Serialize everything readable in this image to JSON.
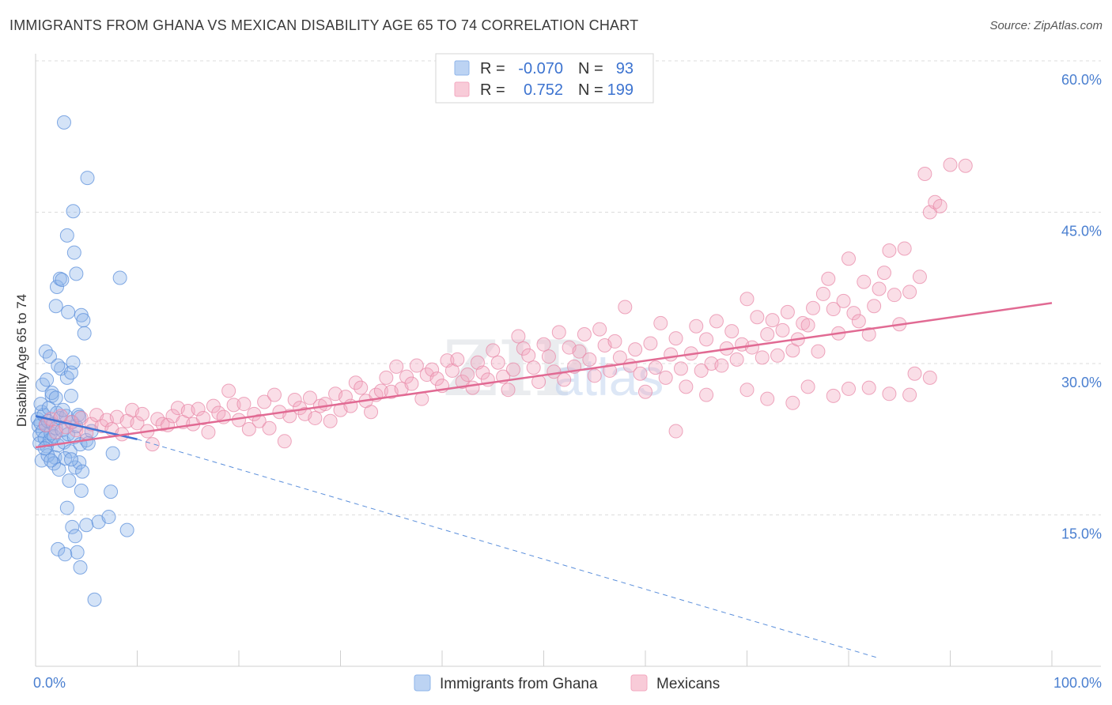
{
  "header": {
    "title": "IMMIGRANTS FROM GHANA VS MEXICAN DISABILITY AGE 65 TO 74 CORRELATION CHART",
    "source": "Source: ZipAtlas.com"
  },
  "watermark": {
    "zip": "ZIP",
    "atlas": "atlas"
  },
  "chart_data": {
    "type": "scatter",
    "ylabel": "Disability Age 65 to 74",
    "xlim": [
      0,
      100
    ],
    "ylim": [
      0,
      60
    ],
    "x_tick_labels": [
      "0.0%",
      "100.0%"
    ],
    "y_ticks": [
      15,
      30,
      45,
      60
    ],
    "y_tick_labels": [
      "15.0%",
      "30.0%",
      "45.0%",
      "60.0%"
    ],
    "grid": "horizontal dashed",
    "legend_position": "top-center",
    "legend_stats": [
      {
        "r_label": "R =",
        "r": "-0.070",
        "n_label": "N =",
        "n": "93",
        "color": "#8fb5ea"
      },
      {
        "r_label": "R =",
        "r": "0.752",
        "n_label": "N =",
        "n": "199",
        "color": "#f3a9c0"
      }
    ],
    "series": [
      {
        "name": "Immigrants from Ghana",
        "color": "#8fb5ea",
        "stroke": "#5b8fdb",
        "trend": {
          "x0": 0,
          "y0": 24.8,
          "x1": 10,
          "y1": 22.5,
          "solid_until": 10,
          "dashed_to": 83,
          "dashed_y": 0.8
        },
        "points": [
          [
            0.2,
            24.5
          ],
          [
            0.3,
            23.8
          ],
          [
            0.4,
            22.9
          ],
          [
            0.5,
            24.1
          ],
          [
            0.6,
            25.2
          ],
          [
            0.7,
            23.3
          ],
          [
            0.4,
            22.1
          ],
          [
            0.8,
            24.9
          ],
          [
            0.9,
            22.6
          ],
          [
            1.0,
            23.9
          ],
          [
            1.1,
            21.8
          ],
          [
            1.2,
            24.3
          ],
          [
            0.5,
            26.0
          ],
          [
            0.7,
            27.9
          ],
          [
            1.3,
            25.6
          ],
          [
            1.4,
            22.4
          ],
          [
            1.5,
            23.1
          ],
          [
            1.6,
            26.8
          ],
          [
            1.7,
            24.0
          ],
          [
            1.8,
            22.8
          ],
          [
            1.9,
            20.7
          ],
          [
            2.0,
            23.6
          ],
          [
            2.1,
            25.1
          ],
          [
            2.2,
            21.9
          ],
          [
            2.4,
            24.6
          ],
          [
            2.6,
            23.4
          ],
          [
            2.8,
            22.2
          ],
          [
            3.0,
            24.8
          ],
          [
            3.2,
            23.0
          ],
          [
            3.4,
            21.3
          ],
          [
            3.6,
            24.2
          ],
          [
            3.8,
            22.7
          ],
          [
            4.0,
            23.8
          ],
          [
            4.2,
            24.9
          ],
          [
            4.4,
            22.0
          ],
          [
            0.6,
            20.4
          ],
          [
            1.2,
            20.9
          ],
          [
            1.8,
            20.1
          ],
          [
            2.3,
            19.5
          ],
          [
            2.9,
            20.6
          ],
          [
            3.3,
            18.4
          ],
          [
            3.9,
            19.7
          ],
          [
            4.3,
            20.2
          ],
          [
            1.0,
            31.2
          ],
          [
            1.4,
            30.7
          ],
          [
            2.5,
            29.5
          ],
          [
            3.1,
            28.6
          ],
          [
            3.5,
            29.1
          ],
          [
            1.6,
            27.1
          ],
          [
            2.0,
            26.6
          ],
          [
            2.7,
            25.4
          ],
          [
            3.5,
            26.8
          ],
          [
            4.3,
            24.7
          ],
          [
            5.0,
            22.4
          ],
          [
            5.5,
            23.3
          ],
          [
            1.1,
            28.4
          ],
          [
            2.2,
            29.8
          ],
          [
            3.7,
            30.1
          ],
          [
            4.5,
            34.8
          ],
          [
            4.7,
            34.3
          ],
          [
            2.0,
            35.7
          ],
          [
            3.2,
            35.1
          ],
          [
            4.8,
            33.0
          ],
          [
            2.1,
            37.6
          ],
          [
            2.4,
            38.4
          ],
          [
            2.6,
            38.3
          ],
          [
            4.0,
            38.9
          ],
          [
            3.1,
            42.7
          ],
          [
            3.8,
            41.0
          ],
          [
            3.7,
            45.1
          ],
          [
            5.1,
            48.4
          ],
          [
            2.8,
            53.9
          ],
          [
            8.3,
            38.5
          ],
          [
            3.1,
            15.7
          ],
          [
            3.6,
            13.8
          ],
          [
            3.9,
            12.9
          ],
          [
            4.1,
            11.3
          ],
          [
            2.2,
            11.6
          ],
          [
            2.9,
            11.1
          ],
          [
            4.4,
            9.8
          ],
          [
            5.0,
            14.0
          ],
          [
            6.2,
            14.3
          ],
          [
            7.2,
            14.8
          ],
          [
            9.0,
            13.5
          ],
          [
            5.8,
            6.6
          ],
          [
            4.5,
            17.4
          ],
          [
            7.4,
            17.3
          ],
          [
            7.6,
            21.1
          ],
          [
            3.5,
            20.5
          ],
          [
            4.6,
            19.3
          ],
          [
            5.2,
            22.1
          ],
          [
            0.9,
            21.6
          ],
          [
            1.5,
            20.4
          ]
        ]
      },
      {
        "name": "Mexicans",
        "color": "#f3a9c0",
        "stroke": "#e88aa8",
        "trend": {
          "x0": 0,
          "y0": 21.7,
          "x1": 100,
          "y1": 36.0
        },
        "points": [
          [
            1.0,
            23.9
          ],
          [
            1.5,
            24.5
          ],
          [
            2.0,
            23.2
          ],
          [
            2.5,
            24.8
          ],
          [
            3.0,
            23.7
          ],
          [
            3.5,
            24.2
          ],
          [
            4.0,
            23.4
          ],
          [
            4.5,
            24.6
          ],
          [
            5.0,
            23.1
          ],
          [
            5.5,
            24.0
          ],
          [
            6.0,
            24.9
          ],
          [
            6.5,
            23.8
          ],
          [
            7.0,
            24.4
          ],
          [
            7.5,
            23.5
          ],
          [
            8.0,
            24.7
          ],
          [
            8.5,
            23.0
          ],
          [
            9.0,
            24.3
          ],
          [
            9.5,
            25.4
          ],
          [
            10.0,
            24.1
          ],
          [
            10.5,
            25.0
          ],
          [
            11.0,
            23.3
          ],
          [
            11.5,
            22.0
          ],
          [
            12.0,
            24.5
          ],
          [
            12.5,
            24.0
          ],
          [
            13.0,
            23.9
          ],
          [
            13.5,
            24.8
          ],
          [
            14.0,
            25.6
          ],
          [
            14.5,
            24.2
          ],
          [
            15.0,
            25.3
          ],
          [
            15.5,
            24.0
          ],
          [
            16.0,
            25.5
          ],
          [
            16.5,
            24.6
          ],
          [
            17.0,
            23.2
          ],
          [
            17.5,
            25.8
          ],
          [
            18.0,
            25.1
          ],
          [
            18.5,
            24.7
          ],
          [
            19.0,
            27.3
          ],
          [
            19.5,
            25.9
          ],
          [
            20.0,
            24.4
          ],
          [
            20.5,
            26.0
          ],
          [
            21.0,
            23.5
          ],
          [
            21.5,
            25.0
          ],
          [
            22.0,
            24.3
          ],
          [
            22.5,
            26.2
          ],
          [
            23.0,
            23.6
          ],
          [
            23.5,
            26.9
          ],
          [
            24.0,
            25.2
          ],
          [
            24.5,
            22.3
          ],
          [
            25.0,
            24.8
          ],
          [
            25.5,
            26.4
          ],
          [
            26.0,
            25.6
          ],
          [
            26.5,
            25.0
          ],
          [
            27.0,
            26.6
          ],
          [
            27.5,
            24.6
          ],
          [
            28.0,
            25.8
          ],
          [
            28.5,
            26.0
          ],
          [
            29.0,
            24.3
          ],
          [
            29.5,
            27.0
          ],
          [
            30.0,
            25.4
          ],
          [
            30.5,
            26.7
          ],
          [
            31.0,
            25.8
          ],
          [
            31.5,
            28.1
          ],
          [
            32.0,
            27.6
          ],
          [
            32.5,
            26.3
          ],
          [
            33.0,
            25.2
          ],
          [
            33.5,
            26.9
          ],
          [
            34.0,
            27.3
          ],
          [
            34.5,
            28.6
          ],
          [
            35.0,
            27.2
          ],
          [
            35.5,
            29.7
          ],
          [
            36.0,
            27.5
          ],
          [
            36.5,
            28.7
          ],
          [
            37.0,
            28.0
          ],
          [
            37.5,
            29.8
          ],
          [
            38.0,
            26.5
          ],
          [
            38.5,
            28.9
          ],
          [
            39.0,
            29.4
          ],
          [
            39.5,
            28.5
          ],
          [
            40.0,
            27.8
          ],
          [
            40.5,
            30.3
          ],
          [
            41.0,
            29.3
          ],
          [
            41.5,
            30.4
          ],
          [
            42.0,
            28.2
          ],
          [
            42.5,
            28.9
          ],
          [
            43.0,
            27.6
          ],
          [
            43.5,
            30.1
          ],
          [
            44.0,
            29.1
          ],
          [
            44.5,
            28.4
          ],
          [
            45.0,
            31.3
          ],
          [
            45.5,
            30.1
          ],
          [
            46.0,
            28.7
          ],
          [
            46.5,
            27.4
          ],
          [
            47.0,
            29.4
          ],
          [
            47.5,
            32.7
          ],
          [
            48.0,
            31.5
          ],
          [
            48.5,
            30.8
          ],
          [
            49.0,
            29.6
          ],
          [
            49.5,
            28.2
          ],
          [
            50.0,
            31.9
          ],
          [
            50.5,
            30.7
          ],
          [
            51.0,
            29.2
          ],
          [
            51.5,
            33.1
          ],
          [
            52.0,
            28.4
          ],
          [
            52.5,
            31.6
          ],
          [
            53.0,
            29.7
          ],
          [
            53.5,
            31.2
          ],
          [
            54.0,
            32.9
          ],
          [
            54.5,
            30.4
          ],
          [
            55.0,
            28.8
          ],
          [
            55.5,
            33.4
          ],
          [
            56.0,
            31.8
          ],
          [
            56.5,
            29.3
          ],
          [
            57.0,
            32.2
          ],
          [
            57.5,
            30.6
          ],
          [
            58.0,
            35.6
          ],
          [
            58.5,
            29.8
          ],
          [
            59.0,
            31.4
          ],
          [
            59.5,
            29.0
          ],
          [
            60.0,
            27.2
          ],
          [
            60.5,
            32.0
          ],
          [
            61.0,
            29.6
          ],
          [
            61.5,
            34.0
          ],
          [
            62.0,
            28.6
          ],
          [
            62.5,
            30.9
          ],
          [
            63.0,
            32.5
          ],
          [
            63.5,
            29.5
          ],
          [
            64.0,
            27.7
          ],
          [
            64.5,
            31.0
          ],
          [
            65.0,
            33.7
          ],
          [
            65.5,
            29.3
          ],
          [
            66.0,
            32.4
          ],
          [
            66.5,
            30.0
          ],
          [
            67.0,
            34.2
          ],
          [
            67.5,
            29.8
          ],
          [
            68.0,
            31.5
          ],
          [
            68.5,
            33.2
          ],
          [
            69.0,
            30.4
          ],
          [
            69.5,
            31.9
          ],
          [
            70.0,
            36.4
          ],
          [
            70.5,
            31.6
          ],
          [
            71.0,
            34.6
          ],
          [
            71.5,
            30.6
          ],
          [
            72.0,
            32.9
          ],
          [
            72.5,
            34.3
          ],
          [
            73.0,
            30.8
          ],
          [
            73.5,
            33.3
          ],
          [
            74.0,
            35.1
          ],
          [
            74.5,
            31.3
          ],
          [
            75.0,
            32.4
          ],
          [
            75.5,
            34.0
          ],
          [
            76.0,
            33.8
          ],
          [
            76.5,
            35.5
          ],
          [
            77.0,
            31.2
          ],
          [
            77.5,
            36.9
          ],
          [
            78.0,
            38.4
          ],
          [
            78.5,
            35.4
          ],
          [
            79.0,
            33.0
          ],
          [
            79.5,
            36.2
          ],
          [
            80.0,
            40.4
          ],
          [
            80.5,
            35.0
          ],
          [
            81.0,
            34.2
          ],
          [
            81.5,
            38.1
          ],
          [
            82.0,
            32.9
          ],
          [
            82.5,
            35.7
          ],
          [
            83.0,
            37.4
          ],
          [
            83.5,
            39.0
          ],
          [
            84.0,
            41.2
          ],
          [
            84.5,
            36.8
          ],
          [
            85.0,
            33.9
          ],
          [
            85.5,
            41.4
          ],
          [
            86.0,
            37.1
          ],
          [
            86.5,
            29.0
          ],
          [
            87.0,
            38.6
          ],
          [
            87.5,
            48.8
          ],
          [
            88.0,
            45.0
          ],
          [
            88.5,
            46.0
          ],
          [
            89.0,
            45.6
          ],
          [
            90.0,
            49.7
          ],
          [
            91.5,
            49.6
          ],
          [
            63.0,
            23.3
          ],
          [
            66.0,
            26.9
          ],
          [
            70.0,
            27.4
          ],
          [
            72.0,
            26.5
          ],
          [
            74.5,
            26.1
          ],
          [
            76.0,
            27.7
          ],
          [
            78.5,
            26.8
          ],
          [
            80.0,
            27.5
          ],
          [
            82.0,
            27.6
          ],
          [
            84.0,
            27.0
          ],
          [
            86.0,
            26.9
          ],
          [
            88.0,
            28.6
          ]
        ]
      }
    ]
  },
  "legend_bottom": [
    {
      "label": "Immigrants from Ghana",
      "color": "#bcd3f3",
      "border": "#8fb5ea"
    },
    {
      "label": "Mexicans",
      "color": "#f8cbd8",
      "border": "#f3a9c0"
    }
  ]
}
